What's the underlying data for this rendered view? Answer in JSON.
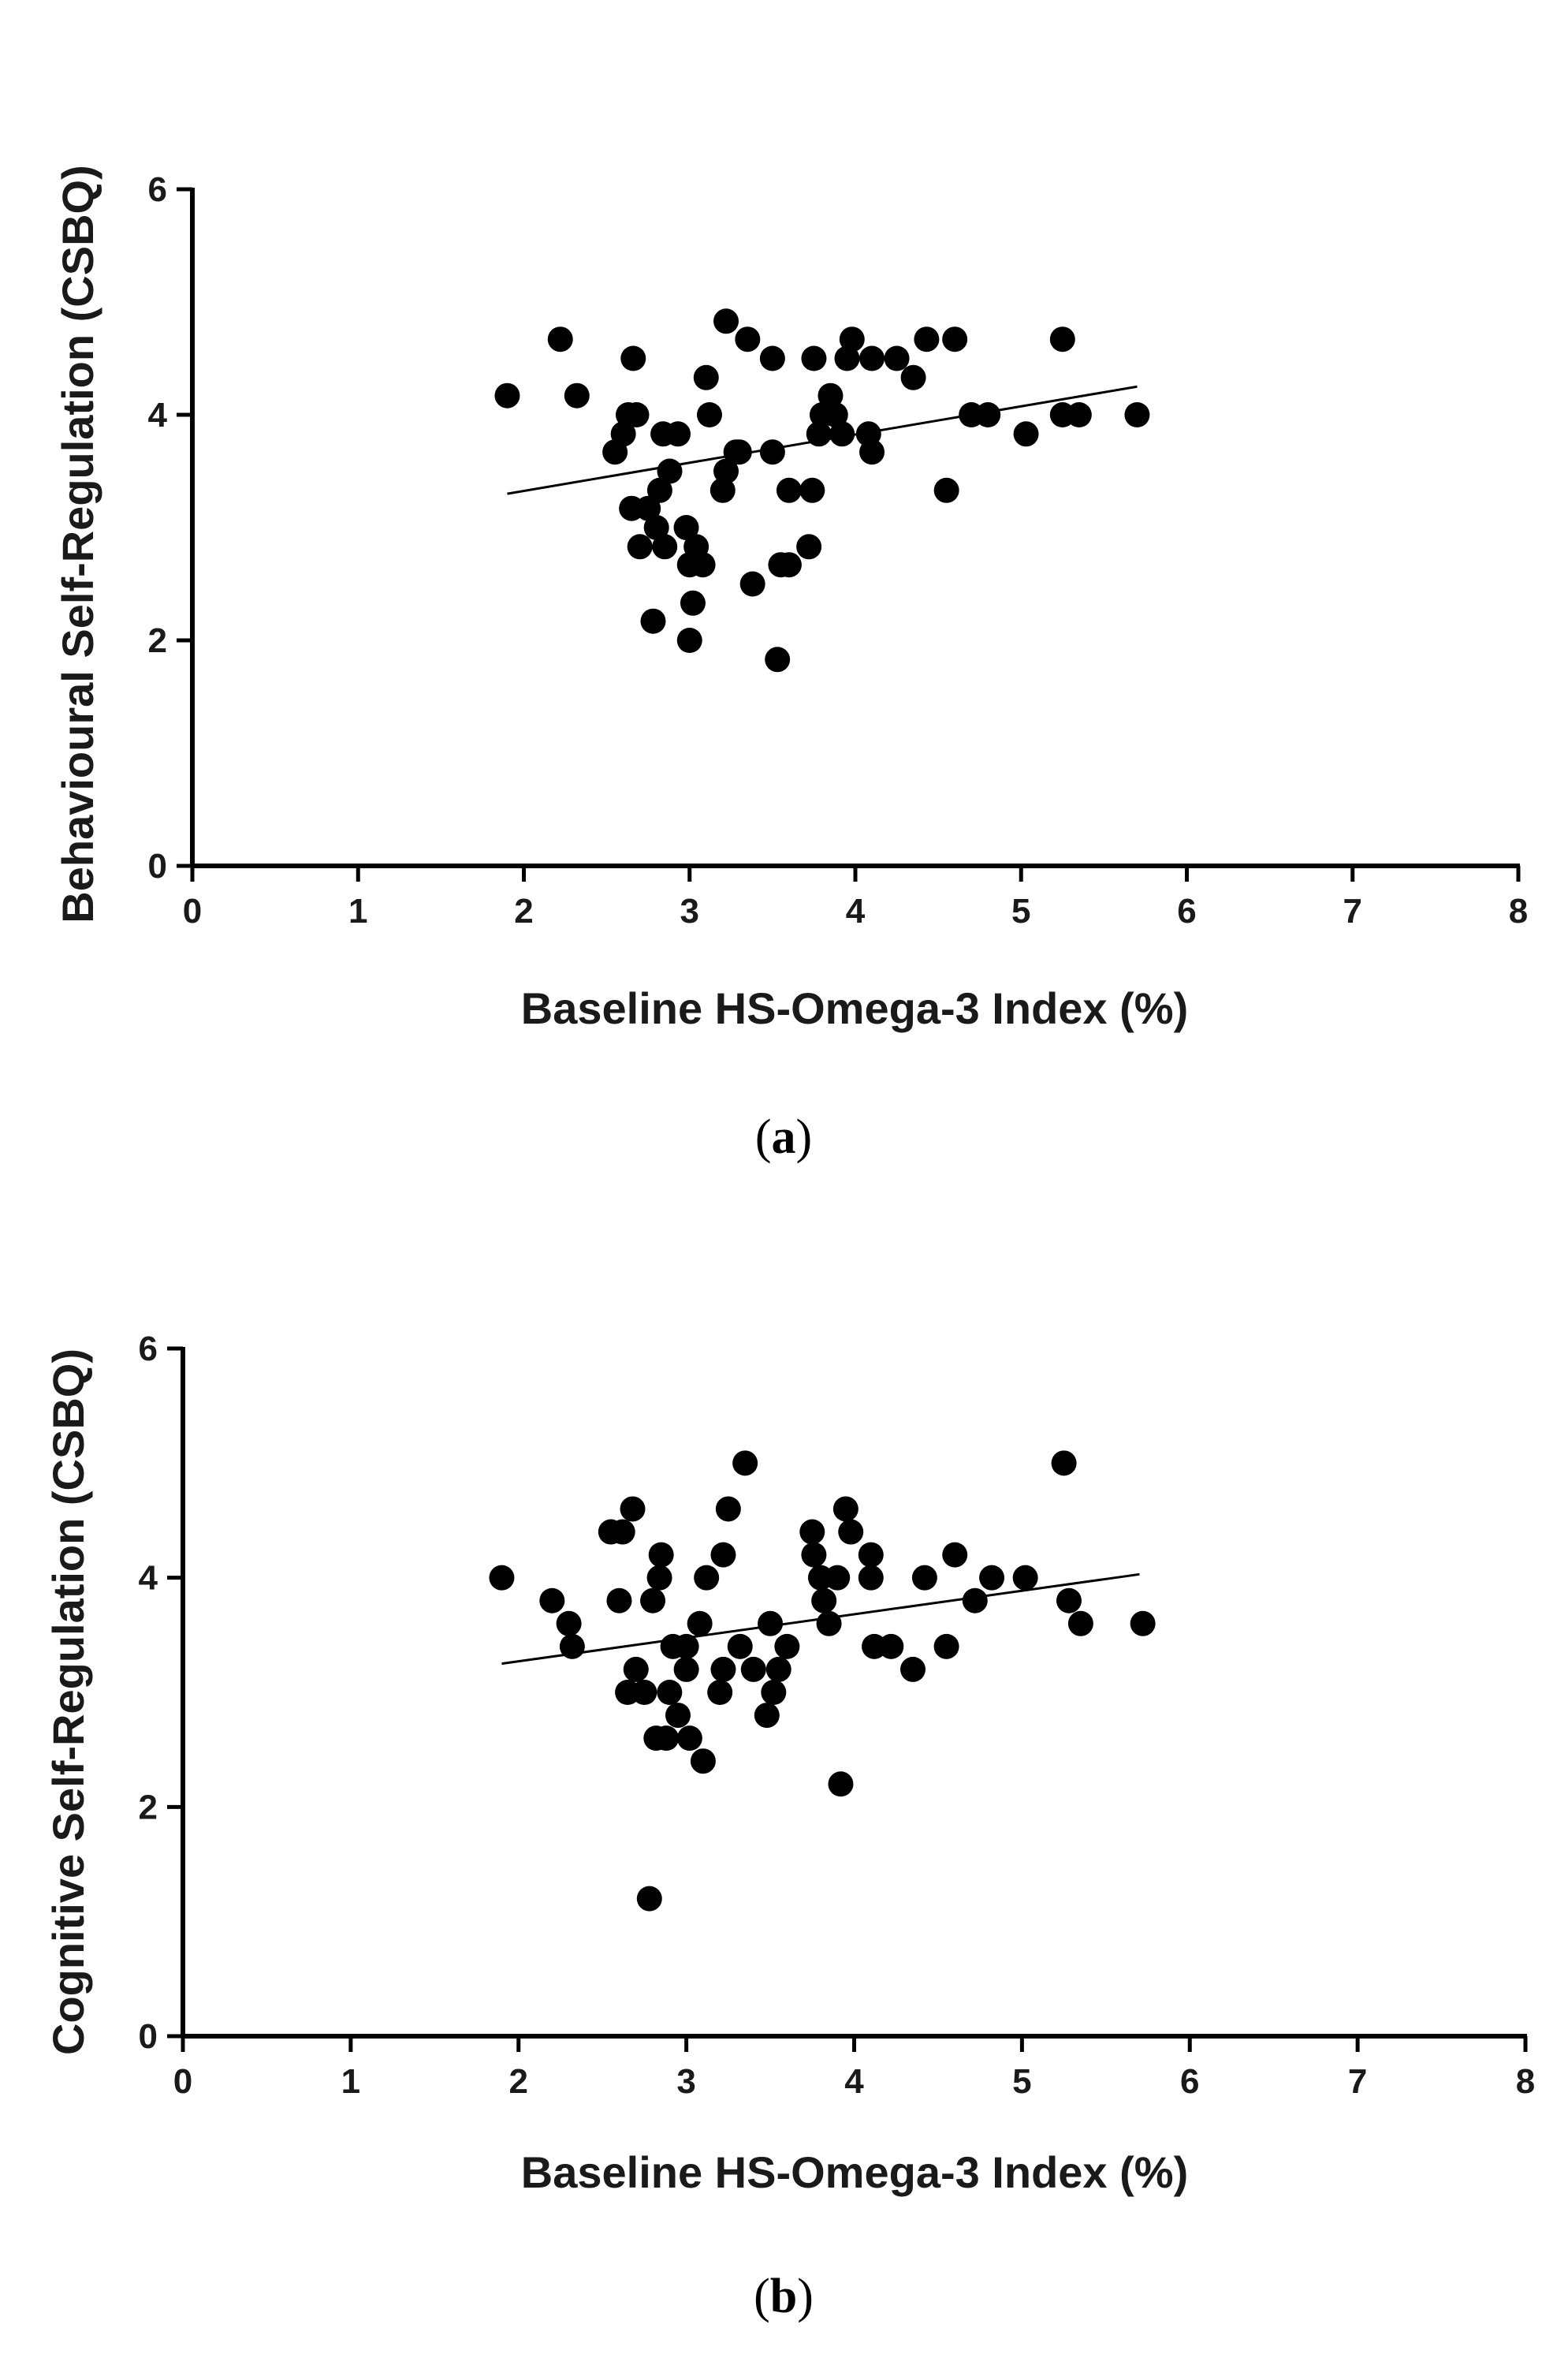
{
  "colors": {
    "background": "#ffffff",
    "axis": "#000000",
    "marker": "#000000",
    "text": "#1a1a1a"
  },
  "chart_data": [
    {
      "panel": "a",
      "panel_label": {
        "open": "(",
        "letter": "a",
        "close": ")"
      },
      "type": "scatter",
      "title": "",
      "xlabel": "Baseline HS-Omega-3 Index (%)",
      "ylabel": "Behavioural Self-Regulation (CSBQ)",
      "xlim": [
        0,
        8
      ],
      "ylim": [
        0,
        6
      ],
      "xticks": [
        0,
        1,
        2,
        3,
        4,
        5,
        6,
        7,
        8
      ],
      "yticks": [
        0,
        2,
        4,
        6
      ],
      "grid": false,
      "trendline": {
        "x": [
          1.9,
          5.7
        ],
        "y": [
          3.3,
          4.25
        ]
      },
      "points": [
        [
          1.9,
          4.17
        ],
        [
          2.22,
          4.67
        ],
        [
          2.32,
          4.17
        ],
        [
          2.55,
          3.67
        ],
        [
          2.6,
          3.83
        ],
        [
          2.63,
          4.0
        ],
        [
          2.65,
          3.17
        ],
        [
          2.66,
          4.5
        ],
        [
          2.68,
          4.0
        ],
        [
          2.7,
          2.83
        ],
        [
          2.75,
          3.17
        ],
        [
          2.78,
          2.17
        ],
        [
          2.8,
          3.0
        ],
        [
          2.82,
          3.33
        ],
        [
          2.84,
          3.83
        ],
        [
          2.85,
          2.83
        ],
        [
          2.88,
          3.5
        ],
        [
          2.93,
          3.83
        ],
        [
          2.98,
          3.0
        ],
        [
          3.0,
          2.67
        ],
        [
          3.0,
          2.0
        ],
        [
          3.02,
          2.33
        ],
        [
          3.04,
          2.83
        ],
        [
          3.08,
          2.67
        ],
        [
          3.1,
          4.33
        ],
        [
          3.12,
          4.0
        ],
        [
          3.2,
          3.33
        ],
        [
          3.22,
          3.5
        ],
        [
          3.22,
          4.83
        ],
        [
          3.28,
          3.67
        ],
        [
          3.3,
          3.67
        ],
        [
          3.35,
          4.67
        ],
        [
          3.38,
          2.5
        ],
        [
          3.5,
          4.5
        ],
        [
          3.5,
          3.67
        ],
        [
          3.53,
          1.83
        ],
        [
          3.55,
          2.67
        ],
        [
          3.6,
          2.67
        ],
        [
          3.6,
          3.33
        ],
        [
          3.72,
          2.83
        ],
        [
          3.74,
          3.33
        ],
        [
          3.75,
          4.5
        ],
        [
          3.78,
          3.83
        ],
        [
          3.8,
          4.0
        ],
        [
          3.85,
          4.17
        ],
        [
          3.88,
          4.0
        ],
        [
          3.92,
          3.83
        ],
        [
          3.95,
          4.5
        ],
        [
          3.98,
          4.67
        ],
        [
          4.08,
          3.83
        ],
        [
          4.1,
          3.67
        ],
        [
          4.1,
          4.5
        ],
        [
          4.25,
          4.5
        ],
        [
          4.35,
          4.33
        ],
        [
          4.43,
          4.67
        ],
        [
          4.55,
          3.33
        ],
        [
          4.6,
          4.67
        ],
        [
          4.7,
          4.0
        ],
        [
          4.8,
          4.0
        ],
        [
          5.03,
          3.83
        ],
        [
          5.25,
          4.67
        ],
        [
          5.25,
          4.0
        ],
        [
          5.35,
          4.0
        ],
        [
          5.7,
          4.0
        ]
      ]
    },
    {
      "panel": "b",
      "panel_label": {
        "open": "(",
        "letter": "b",
        "close": ")"
      },
      "type": "scatter",
      "title": "",
      "xlabel": "Baseline HS-Omega-3 Index (%)",
      "ylabel": "Cognitive Self-Regulation (CSBQ)",
      "xlim": [
        0,
        8
      ],
      "ylim": [
        0,
        6
      ],
      "xticks": [
        0,
        1,
        2,
        3,
        4,
        5,
        6,
        7,
        8
      ],
      "yticks": [
        0,
        2,
        4,
        6
      ],
      "grid": false,
      "trendline": {
        "x": [
          1.9,
          5.7
        ],
        "y": [
          3.25,
          4.03
        ]
      },
      "points": [
        [
          1.9,
          4.0
        ],
        [
          2.2,
          3.8
        ],
        [
          2.3,
          3.6
        ],
        [
          2.32,
          3.4
        ],
        [
          2.55,
          4.4
        ],
        [
          2.6,
          3.8
        ],
        [
          2.62,
          4.4
        ],
        [
          2.65,
          3.0
        ],
        [
          2.68,
          4.6
        ],
        [
          2.7,
          3.2
        ],
        [
          2.75,
          3.0
        ],
        [
          2.78,
          1.2
        ],
        [
          2.8,
          3.8
        ],
        [
          2.82,
          2.6
        ],
        [
          2.84,
          4.0
        ],
        [
          2.85,
          4.2
        ],
        [
          2.88,
          2.6
        ],
        [
          2.9,
          3.0
        ],
        [
          2.92,
          3.4
        ],
        [
          2.95,
          2.8
        ],
        [
          3.0,
          3.4
        ],
        [
          3.0,
          3.2
        ],
        [
          3.02,
          2.6
        ],
        [
          3.08,
          3.6
        ],
        [
          3.1,
          2.4
        ],
        [
          3.12,
          4.0
        ],
        [
          3.2,
          3.0
        ],
        [
          3.22,
          3.2
        ],
        [
          3.22,
          4.2
        ],
        [
          3.25,
          4.6
        ],
        [
          3.32,
          3.4
        ],
        [
          3.35,
          5.0
        ],
        [
          3.4,
          3.2
        ],
        [
          3.48,
          2.8
        ],
        [
          3.5,
          3.6
        ],
        [
          3.52,
          3.0
        ],
        [
          3.55,
          3.2
        ],
        [
          3.6,
          3.4
        ],
        [
          3.75,
          4.4
        ],
        [
          3.76,
          4.2
        ],
        [
          3.8,
          4.0
        ],
        [
          3.82,
          3.8
        ],
        [
          3.85,
          3.6
        ],
        [
          3.9,
          4.0
        ],
        [
          3.92,
          2.2
        ],
        [
          3.95,
          4.6
        ],
        [
          3.98,
          4.4
        ],
        [
          4.1,
          4.2
        ],
        [
          4.1,
          4.0
        ],
        [
          4.12,
          3.4
        ],
        [
          4.22,
          3.4
        ],
        [
          4.35,
          3.2
        ],
        [
          4.42,
          4.0
        ],
        [
          4.55,
          3.4
        ],
        [
          4.6,
          4.2
        ],
        [
          4.72,
          3.8
        ],
        [
          4.82,
          4.0
        ],
        [
          5.02,
          4.0
        ],
        [
          5.25,
          5.0
        ],
        [
          5.28,
          3.8
        ],
        [
          5.35,
          3.6
        ],
        [
          5.72,
          3.6
        ]
      ]
    }
  ]
}
